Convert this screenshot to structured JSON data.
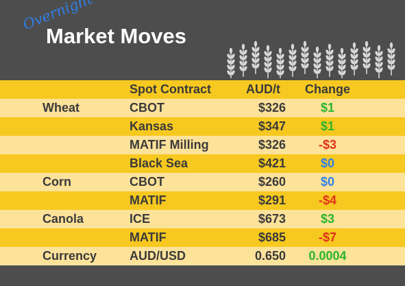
{
  "header": {
    "overnight": "Overnight",
    "title": "Market Moves",
    "decoration_icon": "wheat-stalks-icon",
    "background_color": "#4d4d4d"
  },
  "table": {
    "columns": {
      "contract": "Spot Contract",
      "price": "AUD/t",
      "change": "Change"
    },
    "rows": [
      {
        "grain": "Wheat",
        "contract": "CBOT",
        "price": "$326",
        "change": "$1",
        "change_color": "#2bb52b"
      },
      {
        "grain": "",
        "contract": "Kansas",
        "price": "$347",
        "change": "$1",
        "change_color": "#2bb52b"
      },
      {
        "grain": "",
        "contract": "MATIF Milling",
        "price": "$326",
        "change": "-$3",
        "change_color": "#e0311b"
      },
      {
        "grain": "",
        "contract": "Black Sea",
        "price": "$421",
        "change": "$0",
        "change_color": "#2f7fe7"
      },
      {
        "grain": "Corn",
        "contract": "CBOT",
        "price": "$260",
        "change": "$0",
        "change_color": "#2f7fe7"
      },
      {
        "grain": "",
        "contract": "MATIF",
        "price": "$291",
        "change": "-$4",
        "change_color": "#e0311b"
      },
      {
        "grain": "Canola",
        "contract": "ICE",
        "price": "$673",
        "change": "$3",
        "change_color": "#2bb52b"
      },
      {
        "grain": "",
        "contract": "MATIF",
        "price": "$685",
        "change": "-$7",
        "change_color": "#e0311b"
      },
      {
        "grain": "Currency",
        "contract": "AUD/USD",
        "price": "0.650",
        "change": "0.0004",
        "change_color": "#2bb52b"
      }
    ],
    "row_colors": {
      "dark": "#f7c920",
      "light": "#fde29a"
    }
  }
}
